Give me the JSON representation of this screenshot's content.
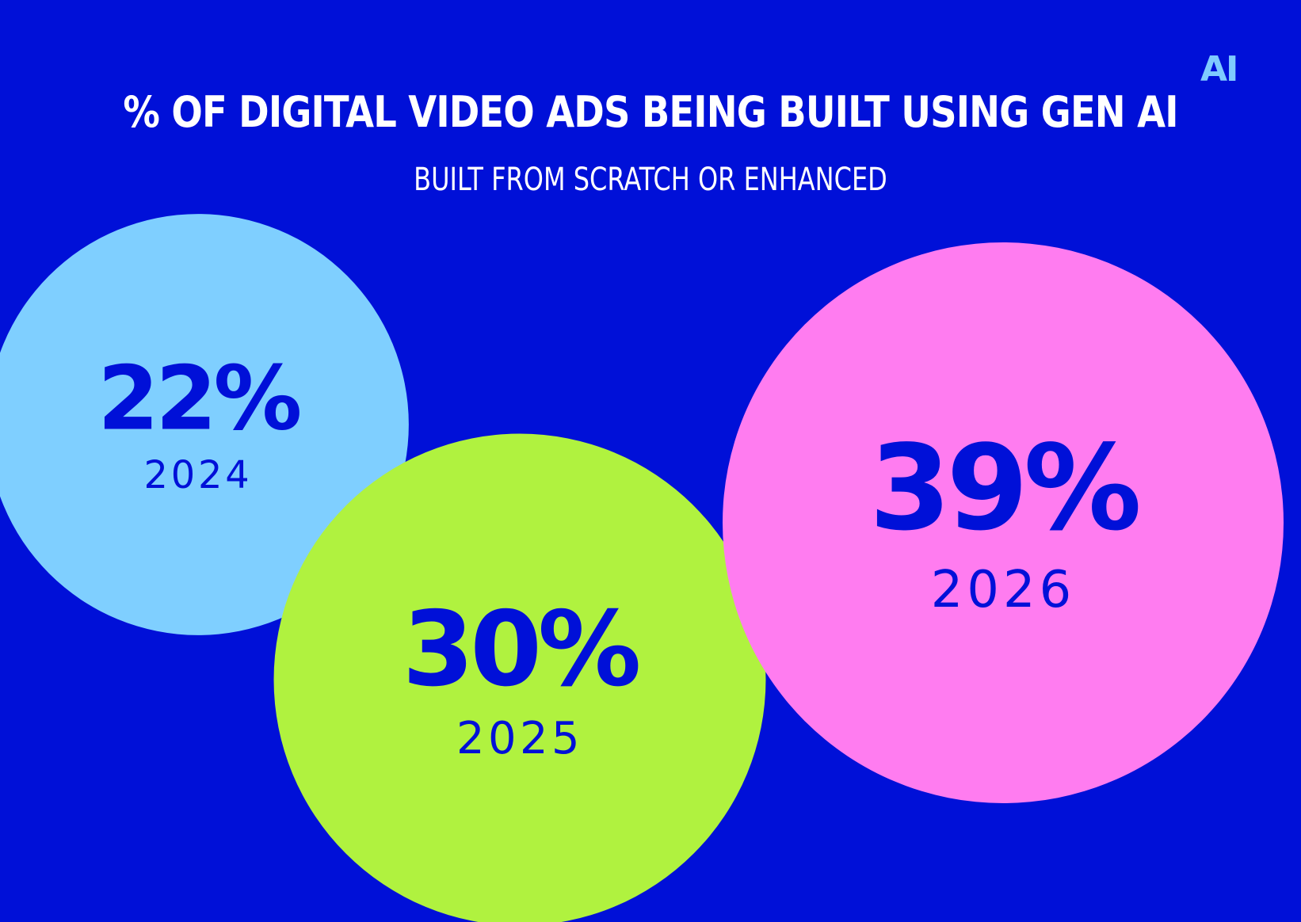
{
  "logo": {
    "text": "AI"
  },
  "chart_data": {
    "type": "bubble",
    "title": "% OF DIGITAL VIDEO ADS BEING BUILT USING GEN AI",
    "subtitle": "BUILT FROM SCRATCH OR ENHANCED",
    "unit": "%",
    "points": [
      {
        "category": "2024",
        "value": 22,
        "value_label": "22%",
        "color": "#7FCFFF"
      },
      {
        "category": "2025",
        "value": 30,
        "value_label": "30%",
        "color": "#B0F23F"
      },
      {
        "category": "2026",
        "value": 39,
        "value_label": "39%",
        "color": "#FF7CF0"
      }
    ],
    "text_color": "#0010D8",
    "background": "#0010D8"
  }
}
